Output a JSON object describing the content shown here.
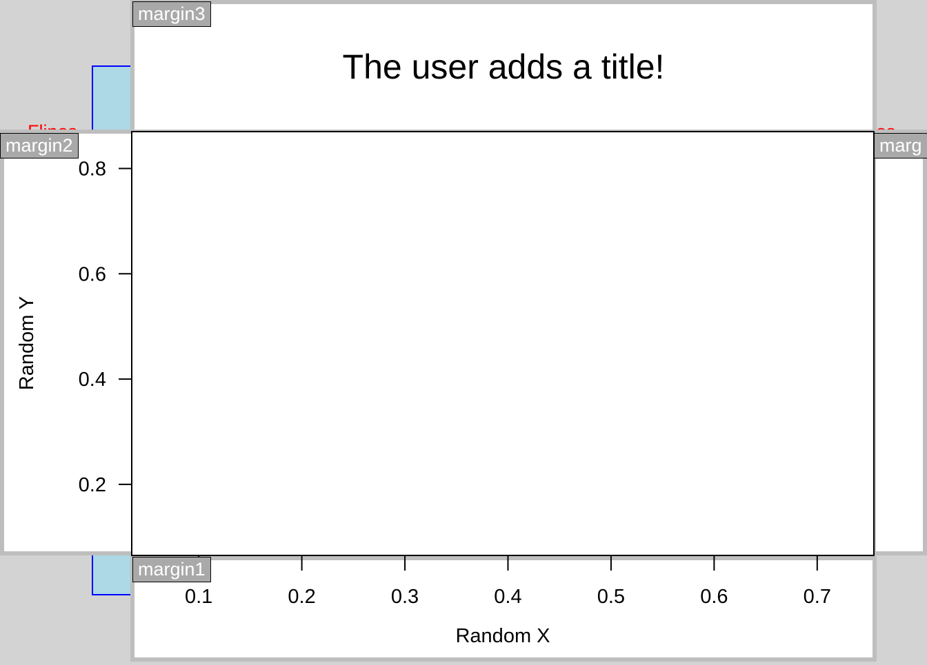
{
  "margin_tags": {
    "margin1": "margin1",
    "margin2": "margin2",
    "margin3": "margin3",
    "margin4": "marg"
  },
  "hidden_text": {
    "left": "Flipos",
    "right": "os"
  },
  "colors": {
    "background": "#d3d3d3",
    "margin_border": "#bebebe",
    "tag_fill": "#a9a9a9",
    "hidden_rect_fill": "#add8e6",
    "hidden_rect_stroke": "#0000ff",
    "hidden_text": "#ff0000"
  },
  "chart_data": {
    "type": "scatter",
    "title": "The user adds a title!",
    "xlabel": "Random X",
    "ylabel": "Random Y",
    "xlim": [
      0.035,
      0.755
    ],
    "ylim": [
      0.065,
      0.87
    ],
    "xticks": [
      0.1,
      0.2,
      0.3,
      0.4,
      0.5,
      0.6,
      0.7
    ],
    "xtick_labels": [
      "0.1",
      "0.2",
      "0.3",
      "0.4",
      "0.5",
      "0.6",
      "0.7"
    ],
    "yticks": [
      0.2,
      0.4,
      0.6,
      0.8
    ],
    "ytick_labels": [
      "0.2",
      "0.4",
      "0.6",
      "0.8"
    ],
    "points": [],
    "grid": false
  }
}
